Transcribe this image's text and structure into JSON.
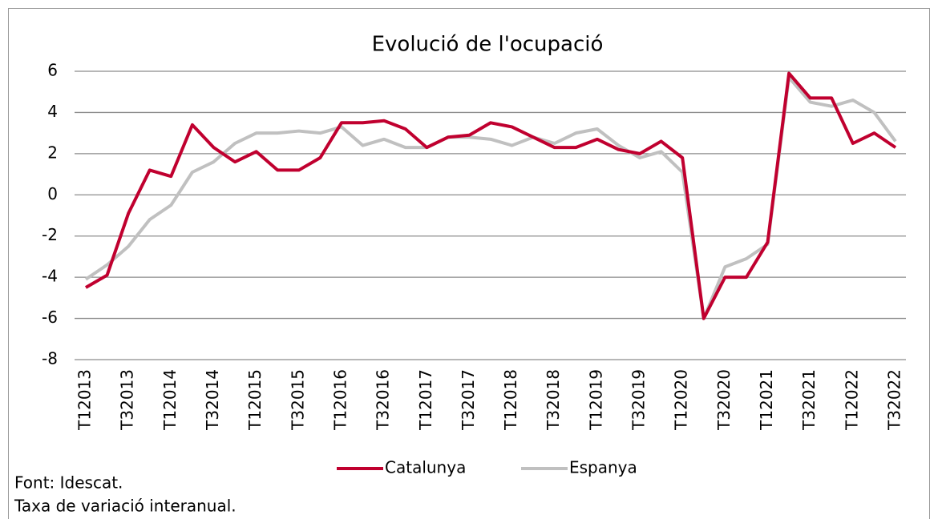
{
  "chart_data": {
    "type": "line",
    "title": "Evolució de l'ocupació",
    "categories": [
      "T12013",
      null,
      "T32013",
      null,
      "T12014",
      null,
      "T32014",
      null,
      "T12015",
      null,
      "T32015",
      null,
      "T12016",
      null,
      "T32016",
      null,
      "T12017",
      null,
      "T32017",
      null,
      "T12018",
      null,
      "T32018",
      null,
      "T12019",
      null,
      "T32019",
      null,
      "T12020",
      null,
      "T32020",
      null,
      "T12021",
      null,
      "T32021",
      null,
      "T12022",
      null,
      "T32022"
    ],
    "series": [
      {
        "name": "Catalunya",
        "color": "#c0002f",
        "values": [
          -4.5,
          -3.9,
          -0.9,
          1.2,
          0.9,
          3.4,
          2.3,
          1.6,
          2.1,
          1.2,
          1.2,
          1.8,
          3.5,
          3.5,
          3.6,
          3.2,
          2.3,
          2.8,
          2.9,
          3.5,
          3.3,
          2.8,
          2.3,
          2.3,
          2.7,
          2.2,
          2.0,
          2.6,
          1.8,
          -6.0,
          -4.0,
          -4.0,
          -2.3,
          5.9,
          4.7,
          4.7,
          2.5,
          3.0,
          2.3
        ]
      },
      {
        "name": "Espanya",
        "color": "#c0c0c0",
        "values": [
          -4.1,
          -3.4,
          -2.5,
          -1.2,
          -0.5,
          1.1,
          1.6,
          2.5,
          3.0,
          3.0,
          3.1,
          3.0,
          3.3,
          2.4,
          2.7,
          2.3,
          2.3,
          2.8,
          2.8,
          2.7,
          2.4,
          2.8,
          2.5,
          3.0,
          3.2,
          2.4,
          1.8,
          2.1,
          1.1,
          -6.0,
          -3.5,
          -3.1,
          -2.4,
          5.7,
          4.5,
          4.3,
          4.6,
          4.0,
          2.6
        ]
      }
    ],
    "ylim": [
      -8,
      6
    ],
    "yticks": [
      -8,
      -6,
      -4,
      -2,
      0,
      2,
      4,
      6
    ],
    "grid": true,
    "legend": "bottom",
    "notes": [
      "Font: Idescat.",
      "Taxa de variació  interanual."
    ]
  }
}
